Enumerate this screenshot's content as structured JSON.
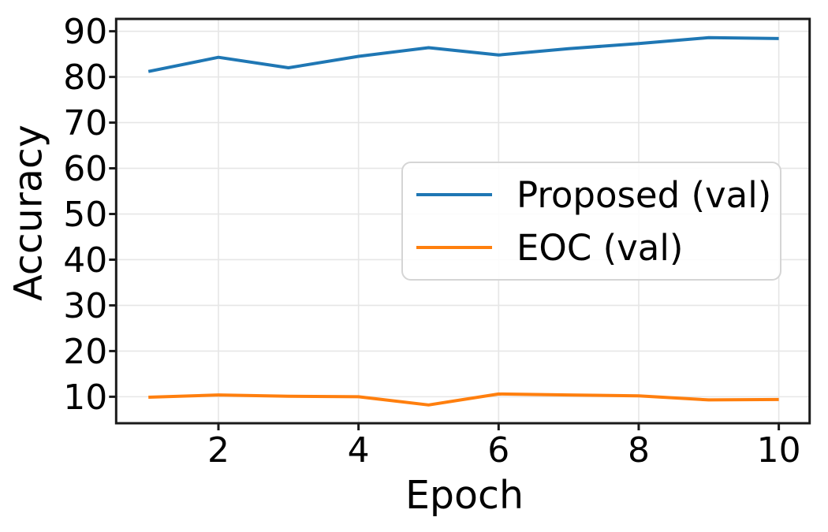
{
  "chart_data": {
    "type": "line",
    "title": "",
    "xlabel": "Epoch",
    "ylabel": "Accuracy",
    "x": [
      1,
      2,
      3,
      4,
      5,
      6,
      7,
      8,
      9,
      10
    ],
    "series": [
      {
        "name": "Proposed (val)",
        "color": "#1f77b4",
        "values": [
          81.2,
          84.3,
          82.0,
          84.5,
          86.4,
          84.8,
          86.2,
          87.3,
          88.6,
          88.4
        ]
      },
      {
        "name": "EOC (val)",
        "color": "#ff7f0e",
        "values": [
          9.9,
          10.4,
          10.1,
          10.0,
          8.2,
          10.6,
          10.4,
          10.2,
          9.3,
          9.4
        ]
      }
    ],
    "xticks": [
      2,
      4,
      6,
      8,
      10
    ],
    "yticks": [
      10,
      20,
      30,
      40,
      50,
      60,
      70,
      80,
      90
    ],
    "xlim": [
      0.54,
      10.44
    ],
    "ylim": [
      4.2,
      92.7
    ],
    "grid": true,
    "legend_position": "center-right",
    "colors": {
      "grid": "#e6e6e6",
      "spine": "#1a1a1a",
      "tick_text": "#000000"
    }
  }
}
